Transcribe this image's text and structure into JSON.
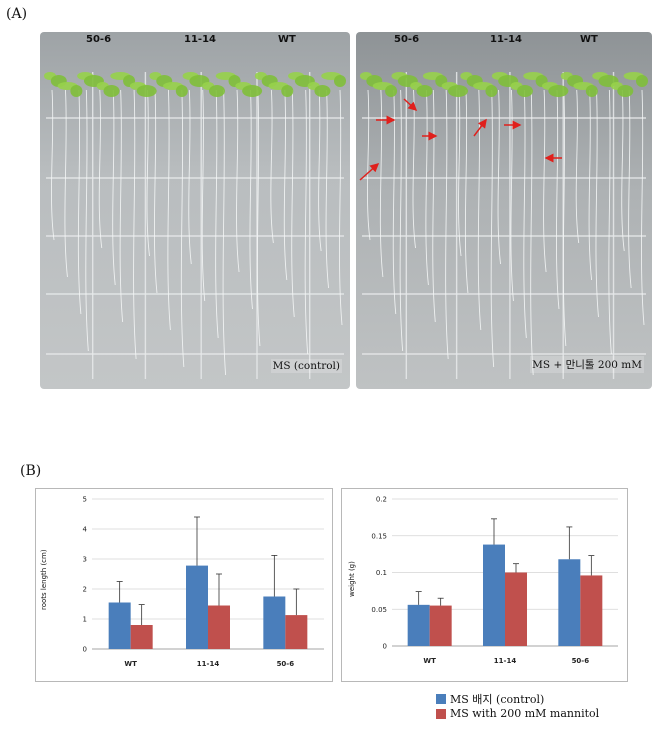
{
  "panel_a": {
    "label": "(A)",
    "left_plate": {
      "lines": [
        "50-6",
        "11-14",
        "WT"
      ],
      "caption": "MS (control)"
    },
    "right_plate": {
      "lines": [
        "50-6",
        "11-14",
        "WT"
      ],
      "caption": "MS + 만니톨 200 mM",
      "arrow_color": "#e0201c"
    }
  },
  "panel_b": {
    "label": "(B)",
    "legend": [
      {
        "label": "MS 배지 (control)",
        "color": "#4a7ebb"
      },
      {
        "label": "MS with 200 mM mannitol",
        "color": "#c0504d"
      }
    ]
  },
  "chart_data": [
    {
      "type": "bar",
      "categories": [
        "WT",
        "11-14",
        "50-6"
      ],
      "ylabel": "roots length (cm)",
      "ylim": [
        0,
        5
      ],
      "yticks": [
        "0",
        "1",
        "2",
        "3",
        "4",
        "5"
      ],
      "grid": true,
      "series": [
        {
          "name": "MS 배지 (control)",
          "color": "#4a7ebb",
          "values": [
            1.55,
            2.78,
            1.75
          ],
          "errors": [
            0.7,
            1.62,
            1.37
          ]
        },
        {
          "name": "MS with 200 mM mannitol",
          "color": "#c0504d",
          "values": [
            0.8,
            1.45,
            1.13
          ],
          "errors": [
            0.68,
            1.05,
            0.87
          ]
        }
      ]
    },
    {
      "type": "bar",
      "categories": [
        "WT",
        "11-14",
        "50-6"
      ],
      "ylabel": "weight (g)",
      "ylim": [
        0,
        0.2
      ],
      "yticks": [
        "0",
        "0.05",
        "0.1",
        "0.15",
        "0.2"
      ],
      "grid": true,
      "series": [
        {
          "name": "MS 배지 (control)",
          "color": "#4a7ebb",
          "values": [
            0.056,
            0.138,
            0.118
          ],
          "errors": [
            0.018,
            0.035,
            0.044
          ]
        },
        {
          "name": "MS with 200 mM mannitol",
          "color": "#c0504d",
          "values": [
            0.055,
            0.1,
            0.096
          ],
          "errors": [
            0.01,
            0.012,
            0.027
          ]
        }
      ]
    }
  ]
}
